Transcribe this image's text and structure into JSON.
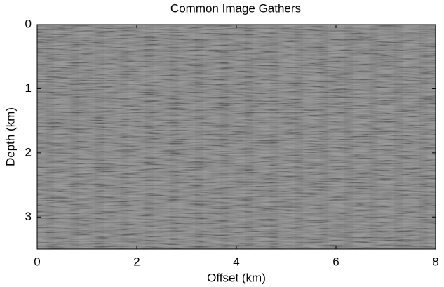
{
  "chart_data": {
    "type": "image",
    "title": "Common Image Gathers",
    "x_label": "Offset (km)",
    "y_label": "Depth (km)",
    "xlim": [
      0,
      8
    ],
    "xticks": [
      0,
      2,
      4,
      6,
      8
    ],
    "ylim": [
      0,
      3.5
    ],
    "yticks": [
      0,
      1,
      2,
      3
    ],
    "y_reversed": true,
    "colormap": "gray"
  }
}
